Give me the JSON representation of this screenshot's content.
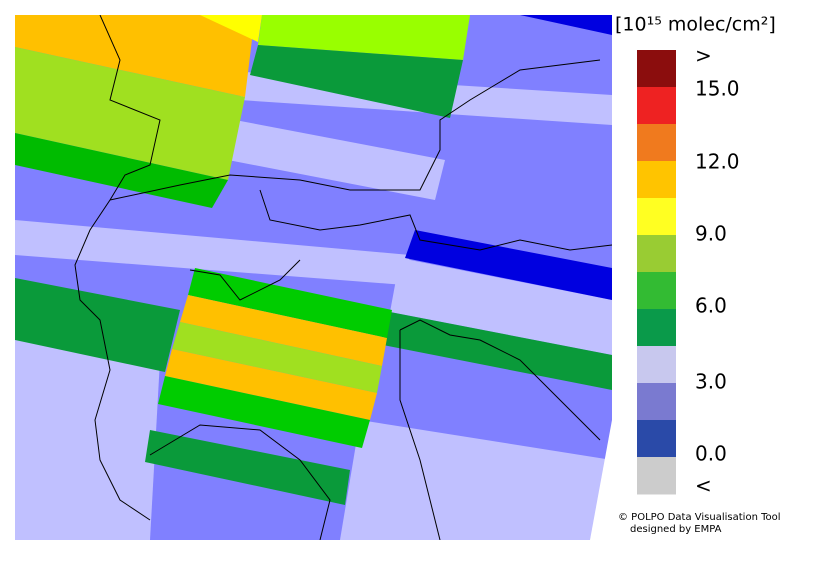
{
  "legend": {
    "title": "[10¹⁵ molec/cm²]",
    "labels": [
      ">",
      "15.0",
      "12.0",
      "9.0",
      "6.0",
      "3.0",
      "0.0",
      "<"
    ],
    "colors": [
      "#8b0d0d",
      "#ee2222",
      "#f07a1e",
      "#ffc400",
      "#ffff22",
      "#99cc33",
      "#33bb33",
      "#0a9a4a",
      "#c8c8ee",
      "#7a7ad0",
      "#2a4aa8",
      "#cccccc"
    ]
  },
  "credits": [
    "© POLPO Data Visualisation Tool",
    "designed by EMPA"
  ]
}
